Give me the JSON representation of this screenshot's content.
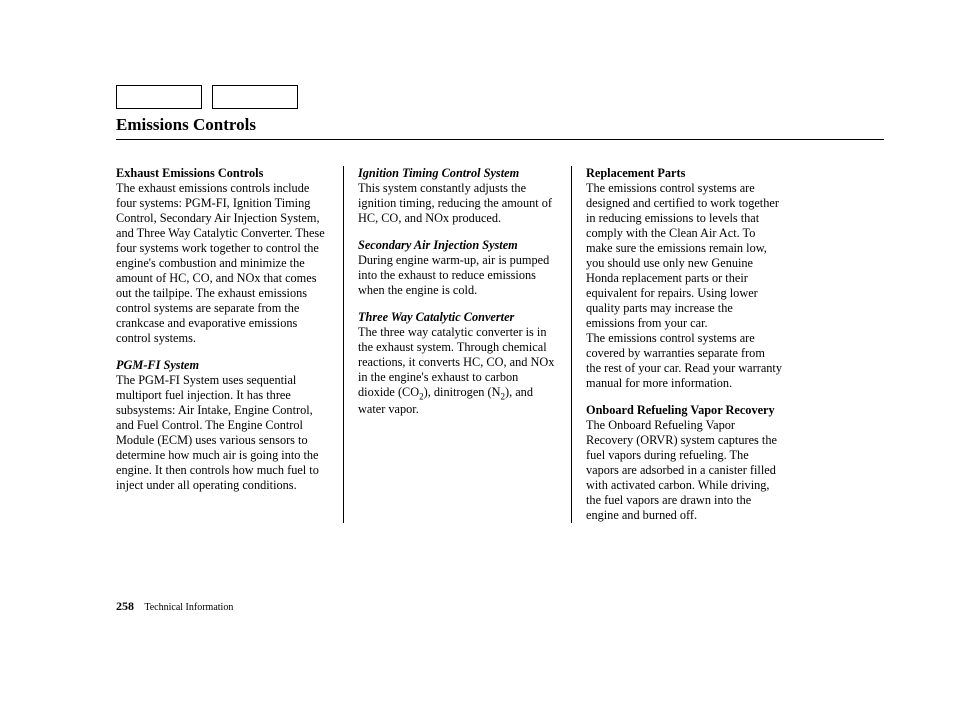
{
  "pageTitle": "Emissions Controls",
  "col1": {
    "h1": "Exhaust Emissions Controls",
    "p1": "The exhaust emissions controls include four systems: PGM-FI, Ignition Timing Control, Secondary Air Injection System, and Three Way Catalytic Converter. These four systems work together to control the engine's combustion and minimize the amount of HC, CO, and NOx that comes out the tailpipe. The exhaust emissions control systems are separate from the crankcase and evaporative emissions control systems.",
    "h2": "PGM-FI System",
    "p2": "The PGM-FI System uses sequential multiport fuel injection. It has three subsystems: Air Intake, Engine Control, and Fuel Control. The Engine Control Module (ECM) uses various sensors to determine how much air is going into the engine. It then controls how much fuel to inject under all operating conditions."
  },
  "col2": {
    "h1": "Ignition Timing Control System",
    "p1": "This system constantly adjusts the ignition timing, reducing the amount of HC, CO, and NOx produced.",
    "h2": "Secondary Air Injection System",
    "p2": "During engine warm-up, air is pumped into the exhaust to reduce emissions when the engine is cold.",
    "h3": "Three Way Catalytic Converter",
    "p3a": "The three way catalytic converter is in the exhaust system. Through chemical reactions, it converts HC, CO, and NOx in the engine's exhaust to carbon dioxide (CO",
    "p3b": "), dinitrogen (N",
    "p3c": "), and water vapor."
  },
  "col3": {
    "h1": "Replacement Parts",
    "p1": "The emissions control systems are designed and certified to work together in reducing emissions to levels that comply with the Clean Air Act. To make sure the emissions remain low, you should use only new Genuine Honda replacement parts or their equivalent for repairs. Using lower quality parts may increase the emissions from your car.",
    "p1b": "The emissions control systems are covered by warranties separate from the rest of your car. Read your warranty manual for more information.",
    "h2": "Onboard Refueling Vapor Recovery",
    "p2": "The Onboard Refueling Vapor Recovery (ORVR) system captures the fuel vapors during refueling. The vapors are adsorbed in a canister filled with activated carbon. While driving, the fuel vapors are drawn into the engine and burned off."
  },
  "footer": {
    "pageNumber": "258",
    "section": "Technical Information"
  },
  "subscripts": {
    "two_a": "2",
    "two_b": "2"
  }
}
